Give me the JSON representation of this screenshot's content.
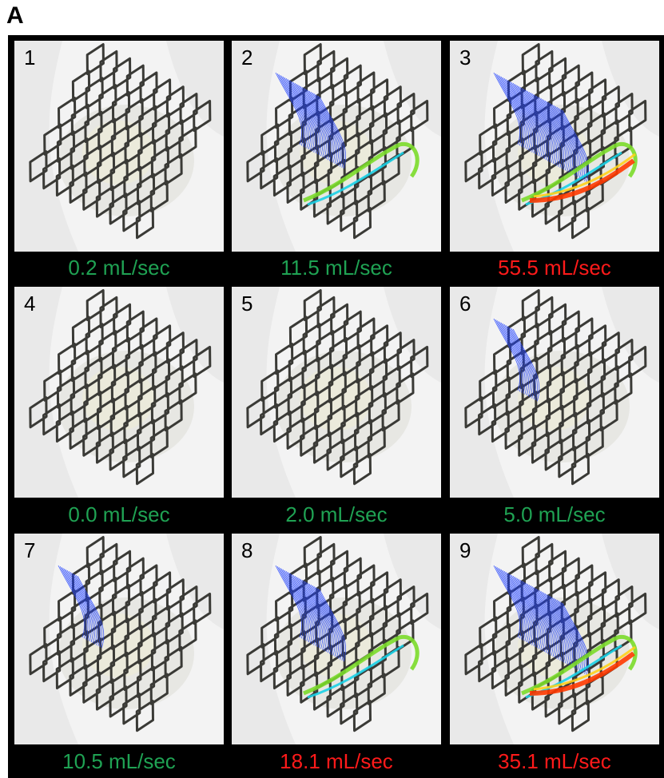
{
  "panel_label": "A",
  "colors": {
    "ok": "#1fa253",
    "high": "#ff1a1a",
    "background": "#000000",
    "stent": "#3a3a36",
    "stream_blue": "#1f3fff",
    "stream_hot": "#ff3a00"
  },
  "cells": [
    {
      "number": "1",
      "rate": "0.2 mL/sec",
      "status": "ok",
      "streamlines": "none"
    },
    {
      "number": "2",
      "rate": "11.5 mL/sec",
      "status": "ok",
      "streamlines": "moderate"
    },
    {
      "number": "3",
      "rate": "55.5 mL/sec",
      "status": "high",
      "streamlines": "heavy"
    },
    {
      "number": "4",
      "rate": "0.0 mL/sec",
      "status": "ok",
      "streamlines": "none"
    },
    {
      "number": "5",
      "rate": "2.0 mL/sec",
      "status": "ok",
      "streamlines": "none"
    },
    {
      "number": "6",
      "rate": "5.0 mL/sec",
      "status": "ok",
      "streamlines": "light"
    },
    {
      "number": "7",
      "rate": "10.5 mL/sec",
      "status": "ok",
      "streamlines": "light"
    },
    {
      "number": "8",
      "rate": "18.1 mL/sec",
      "status": "high",
      "streamlines": "moderate"
    },
    {
      "number": "9",
      "rate": "35.1 mL/sec",
      "status": "high",
      "streamlines": "heavy"
    }
  ]
}
